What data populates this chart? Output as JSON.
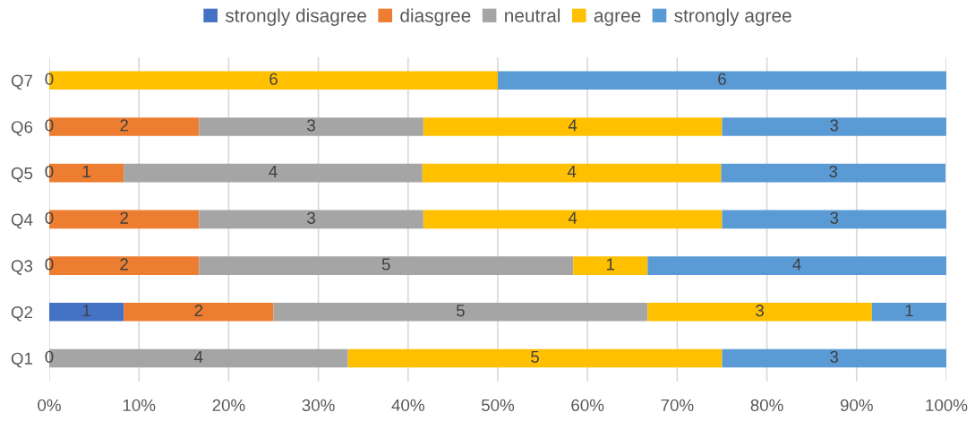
{
  "chart_data": {
    "type": "bar",
    "orientation": "horizontal",
    "stacked": true,
    "categories": [
      "Q7",
      "Q6",
      "Q5",
      "Q4",
      "Q3",
      "Q2",
      "Q1"
    ],
    "series": [
      {
        "name": "strongly disagree",
        "color": "#4472c4",
        "values": [
          0,
          0,
          0,
          0,
          0,
          8.3,
          0
        ]
      },
      {
        "name": "diasgree",
        "color": "#ed7d31",
        "values": [
          0,
          16.7,
          8.3,
          16.7,
          16.7,
          16.7,
          0
        ]
      },
      {
        "name": "neutral",
        "color": "#a5a5a5",
        "values": [
          0,
          25,
          33.3,
          25,
          41.7,
          41.7,
          33.3
        ]
      },
      {
        "name": "agree",
        "color": "#ffc000",
        "values": [
          50,
          33.3,
          33.3,
          33.3,
          8.3,
          25,
          41.7
        ]
      },
      {
        "name": "strongly agree",
        "color": "#5b9bd5",
        "values": [
          50,
          25,
          25,
          25,
          33.3,
          8.3,
          25
        ]
      }
    ],
    "annotations": [
      "0",
      "6",
      "6",
      "0",
      "2",
      "3",
      "4",
      "3",
      "0",
      "1",
      "4",
      "4",
      "3",
      "0",
      "2",
      "3",
      "4",
      "3",
      "0",
      "2",
      "5",
      "1",
      "4",
      "1",
      "2",
      "5",
      "3",
      "1",
      "0",
      "4",
      "5",
      "3"
    ],
    "xlim": [
      0,
      100
    ],
    "xticks": [
      {
        "value": 0,
        "label": "0%"
      },
      {
        "value": 10,
        "label": "10%"
      },
      {
        "value": 20,
        "label": "20%"
      },
      {
        "value": 30,
        "label": "30%"
      },
      {
        "value": 40,
        "label": "40%"
      },
      {
        "value": 50,
        "label": "50%"
      },
      {
        "value": 60,
        "label": "60%"
      },
      {
        "value": 70,
        "label": "70%"
      },
      {
        "value": 80,
        "label": "80%"
      },
      {
        "value": 90,
        "label": "90%"
      },
      {
        "value": 100,
        "label": "100%"
      }
    ],
    "grid": "x",
    "legend": "top"
  }
}
